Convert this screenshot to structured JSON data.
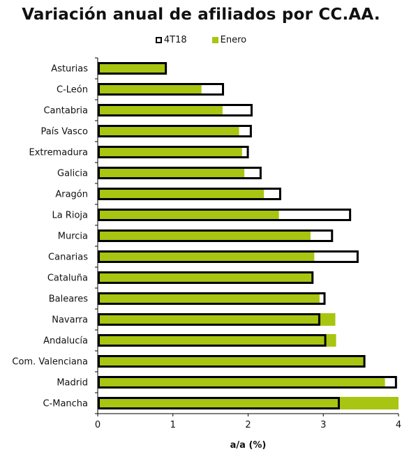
{
  "chart_data": {
    "type": "bar",
    "orientation": "horizontal",
    "title": "Variación anual de afiliados por CC.AA.",
    "xlabel": "a/a (%)",
    "ylabel": "",
    "xlim": [
      0,
      4
    ],
    "xticks": [
      "0",
      "1",
      "2",
      "3",
      "4"
    ],
    "legend_position": "top-center",
    "grid": false,
    "categories": [
      "Asturias",
      "C-León",
      "Cantabria",
      "País Vasco",
      "Extremadura",
      "Galicia",
      "Aragón",
      "La Rioja",
      "Murcia",
      "Canarias",
      "Cataluña",
      "Baleares",
      "Navarra",
      "Andalucía",
      "Com. Valenciana",
      "Madrid",
      "C-Mancha"
    ],
    "series": [
      {
        "name": "4T18",
        "style": "outline",
        "color": "#000000",
        "values": [
          0.92,
          1.68,
          2.06,
          2.05,
          2.01,
          2.18,
          2.44,
          3.37,
          3.13,
          3.47,
          2.87,
          3.03,
          2.96,
          3.04,
          3.56,
          3.98,
          3.22
        ]
      },
      {
        "name": "Enero",
        "style": "fill",
        "color": "#a7c511",
        "values": [
          0.9,
          1.38,
          1.66,
          1.88,
          1.92,
          1.95,
          2.21,
          2.41,
          2.83,
          2.88,
          2.85,
          2.95,
          3.16,
          3.17,
          3.55,
          3.82,
          4.0
        ]
      }
    ]
  }
}
